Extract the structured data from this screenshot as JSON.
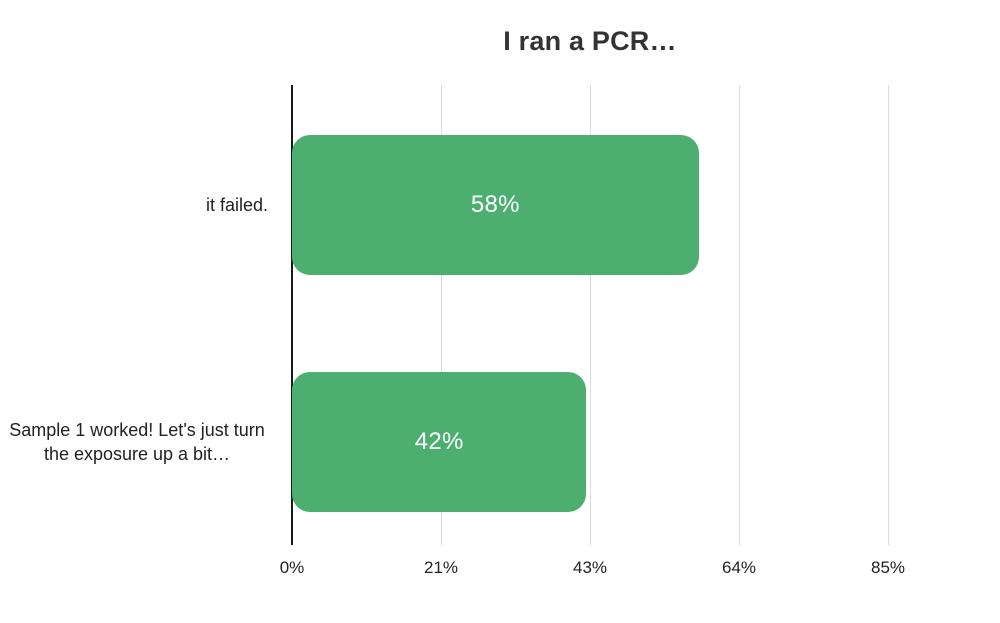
{
  "chart": {
    "title": "I ran a PCR…",
    "bar_color": "#4CAF70",
    "axis_max": 85,
    "ticks": [
      "0%",
      "21%",
      "43%",
      "64%",
      "85%"
    ],
    "tick_values": [
      0,
      21.25,
      42.5,
      63.75,
      85
    ],
    "bars": [
      {
        "label": "it failed.",
        "value": 58,
        "value_label": "58%"
      },
      {
        "label": "Sample 1 worked! Let's just turn the exposure up a bit…",
        "value": 42,
        "value_label": "42%"
      }
    ]
  },
  "chart_data": {
    "type": "bar",
    "orientation": "horizontal",
    "title": "I ran a PCR…",
    "categories": [
      "it failed.",
      "Sample 1 worked! Let's just turn the exposure up a bit…"
    ],
    "values": [
      58,
      42
    ],
    "value_labels": [
      "58%",
      "42%"
    ],
    "xlabel": "",
    "ylabel": "",
    "xlim": [
      0,
      85
    ],
    "x_ticks": [
      "0%",
      "21%",
      "43%",
      "64%",
      "85%"
    ],
    "grid": true,
    "legend": false,
    "bar_color": "#4CAF70",
    "value_label_color": "#ffffff"
  }
}
